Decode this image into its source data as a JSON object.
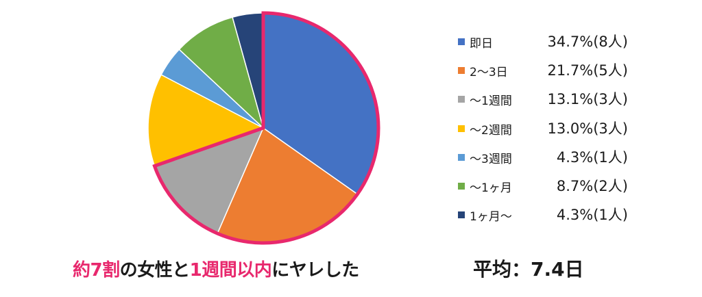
{
  "chart_data": {
    "type": "pie",
    "categories": [
      "即日",
      "2〜3日",
      "〜1週間",
      "〜2週間",
      "〜3週間",
      "〜1ヶ月",
      "1ヶ月〜"
    ],
    "values": [
      34.7,
      21.7,
      13.1,
      13.0,
      4.3,
      8.7,
      4.3
    ],
    "value_labels": [
      "34.7%(8人)",
      "21.7%(5人)",
      "13.1%(3人)",
      "13.0%(3人)",
      "4.3%(1人)",
      "8.7%(2人)",
      "4.3%(1人)"
    ],
    "colors": [
      "#4472c4",
      "#ed7d31",
      "#a5a5a5",
      "#ffc000",
      "#5b9bd5",
      "#70ad47",
      "#264478"
    ],
    "highlight_color": "#e8286d",
    "highlighted_categories": [
      "即日",
      "2〜3日",
      "〜1週間"
    ],
    "legend_position": "right"
  },
  "caption": {
    "part1": "約7割",
    "part2": "の女性と",
    "part3": "1週間以内",
    "part4": "にヤレした"
  },
  "average": "平均：7.4日"
}
